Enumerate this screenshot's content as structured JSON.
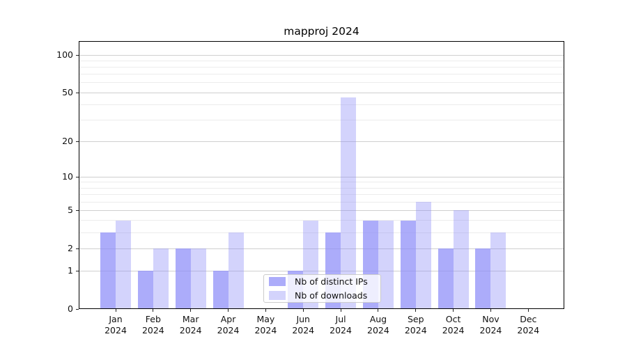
{
  "chart_data": {
    "type": "bar",
    "title": "mapproj 2024",
    "year": "2024",
    "months": [
      "Jan",
      "Feb",
      "Mar",
      "Apr",
      "May",
      "Jun",
      "Jul",
      "Aug",
      "Sep",
      "Oct",
      "Nov",
      "Dec"
    ],
    "categories": [
      "Jan 2024",
      "Feb 2024",
      "Mar 2024",
      "Apr 2024",
      "May 2024",
      "Jun 2024",
      "Jul 2024",
      "Aug 2024",
      "Sep 2024",
      "Oct 2024",
      "Nov 2024",
      "Dec 2024"
    ],
    "series": [
      {
        "name": "Nb of distinct IPs",
        "values": [
          3,
          1,
          2,
          1,
          0,
          1,
          3,
          4,
          4,
          2,
          2,
          0
        ],
        "color": "rgba(140,140,248,0.72)"
      },
      {
        "name": "Nb of downloads",
        "values": [
          4,
          2,
          2,
          3,
          0,
          4,
          46,
          4,
          6,
          5,
          3,
          0
        ],
        "color": "rgba(140,140,248,0.38)"
      }
    ],
    "xlabel": "",
    "ylabel": "",
    "y_scale": "log1p",
    "ylim": [
      0,
      129
    ],
    "y_ticks_major": [
      0,
      1,
      2,
      5,
      10,
      20,
      50,
      100
    ],
    "y_ticks_minor": [
      3,
      4,
      6,
      7,
      8,
      9,
      30,
      40,
      60,
      70,
      80,
      90
    ],
    "grid": true,
    "legend_position": "lower center",
    "colors": {
      "bar_base": "#8c8cf8",
      "grid_major": "#cfcfcf",
      "grid_minor": "#ececec",
      "axis": "#000000"
    }
  }
}
